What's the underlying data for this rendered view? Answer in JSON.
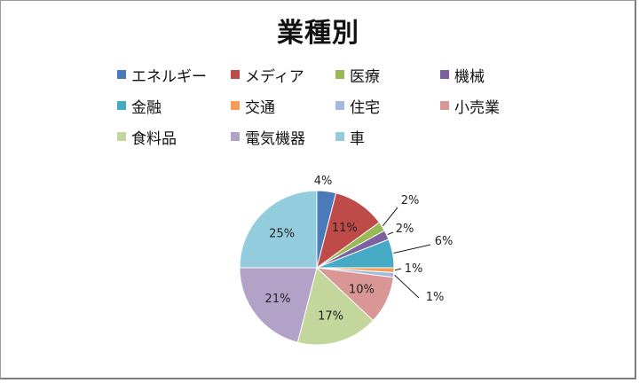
{
  "chart_data": {
    "type": "pie",
    "title": "業種別",
    "legend_placement": "top",
    "categories": [
      "エネルギー",
      "メディア",
      "医療",
      "機械",
      "金融",
      "交通",
      "住宅",
      "小売業",
      "食料品",
      "電気機器",
      "車"
    ],
    "values": [
      4,
      11,
      2,
      2,
      6,
      1,
      1,
      10,
      17,
      21,
      25
    ],
    "labels": [
      "4%",
      "11%",
      "2%",
      "2%",
      "6%",
      "1%",
      "1%",
      "10%",
      "17%",
      "21%",
      "25%"
    ],
    "colors": [
      "#4a7ab8",
      "#be4b48",
      "#98b954",
      "#7d60a0",
      "#46aac4",
      "#f59d56",
      "#a5b8e0",
      "#d99694",
      "#c3d69b",
      "#b3a2c7",
      "#93cddd"
    ]
  }
}
